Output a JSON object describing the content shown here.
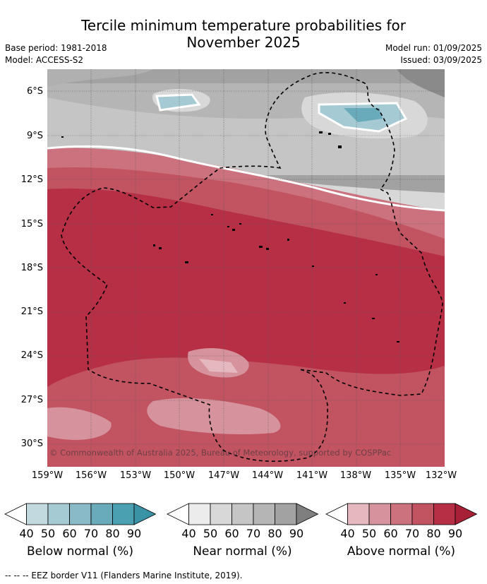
{
  "header": {
    "title_line1": "Tercile minimum temperature probabilities for",
    "title_line2": "November 2025",
    "base_period": "Base period: 1981-2018",
    "model": "Model: ACCESS-S2",
    "model_run": "Model run: 01/09/2025",
    "issued": "Issued: 03/09/2025"
  },
  "map": {
    "lat_labels": [
      "6°S",
      "9°S",
      "12°S",
      "15°S",
      "18°S",
      "21°S",
      "24°S",
      "27°S",
      "30°S"
    ],
    "lon_labels": [
      "159°W",
      "156°W",
      "153°W",
      "150°W",
      "147°W",
      "144°W",
      "141°W",
      "138°W",
      "135°W",
      "132°W"
    ],
    "copyright": "© Commonwealth of Australia 2025, Bureau of Meteorology, supported by COSPPac",
    "lat_range": [
      -31.5,
      -4.5
    ],
    "lon_range": [
      -159,
      -132
    ]
  },
  "legend": {
    "ticks": [
      "40",
      "50",
      "60",
      "70",
      "80",
      "90"
    ],
    "below_label": "Below normal (%)",
    "near_label": "Near normal (%)",
    "above_label": "Above normal (%)",
    "below_colors": [
      "#ffffff",
      "#c3d9e0",
      "#a6cad4",
      "#88bac8",
      "#6aabbb",
      "#4aa0b1",
      "#3a92a5"
    ],
    "near_colors": [
      "#ffffff",
      "#ececec",
      "#d8d8d8",
      "#c5c5c5",
      "#b5b5b5",
      "#a2a2a2",
      "#7f7f7f"
    ],
    "above_colors": [
      "#ffffff",
      "#e5b8bf",
      "#d6939d",
      "#cc727e",
      "#c25462",
      "#b62f45",
      "#a82037"
    ]
  },
  "footnote": "--  --  -- EEZ border V11 (Flanders Marine Institute, 2019)."
}
